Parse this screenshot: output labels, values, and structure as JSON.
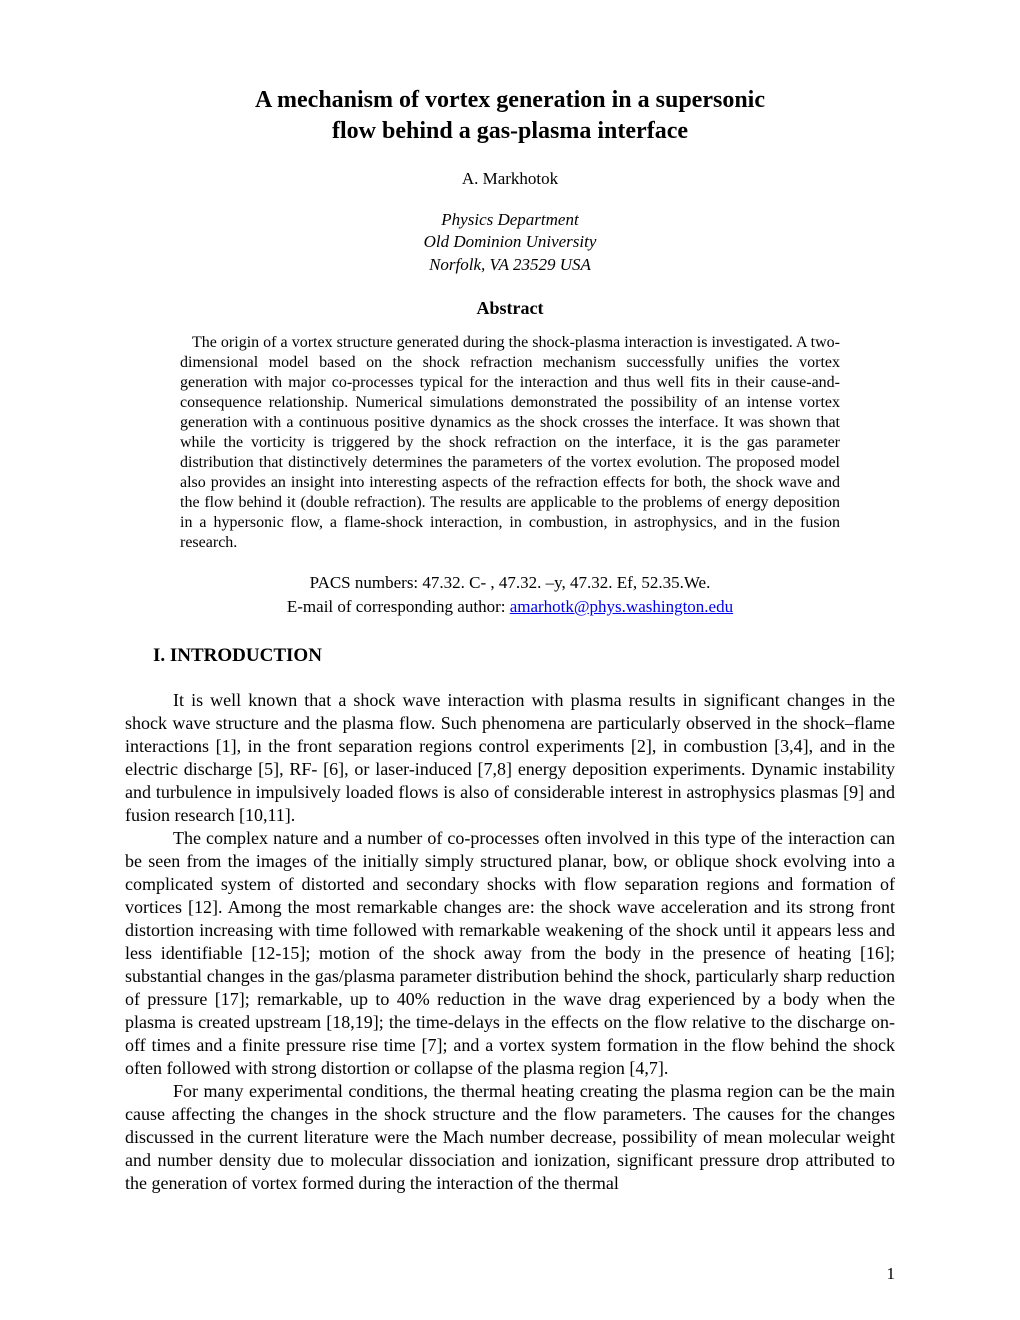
{
  "title_line1": "A mechanism of vortex generation in a supersonic",
  "title_line2": "flow behind a gas-plasma interface",
  "author_prefix": "A.   ",
  "author_name": "Markhotok",
  "affiliation_line1": "Physics Department",
  "affiliation_line2": "Old Dominion University",
  "affiliation_line3": "Norfolk, VA 23529 USA",
  "abstract_heading": "Abstract",
  "abstract_text": "The origin of a vortex structure generated during the shock-plasma interaction is investigated. A two-dimensional model based on the shock refraction mechanism successfully unifies the vortex generation with major co-processes typical for the interaction and thus well fits in their cause-and-consequence relationship. Numerical simulations demonstrated the possibility of an intense vortex generation with a continuous positive dynamics as the shock crosses the interface. It was shown that while the vorticity is triggered by the shock refraction on the interface, it is the gas parameter distribution that distinctively determines the parameters of the vortex evolution. The proposed model also provides an insight into interesting aspects of the refraction effects for both, the shock wave and the flow behind it (double refraction). The results are applicable to the problems of energy deposition in a hypersonic flow, a flame-shock interaction, in combustion, in astrophysics, and in the fusion research.",
  "pacs_line": "PACS numbers: 47.32. C- , 47.32. –y, 47.32. Ef,  52.35.We.",
  "email_label": "E-mail of corresponding author: ",
  "email_address": "amarhotk@phys.washington.edu",
  "section_heading": "I. INTRODUCTION",
  "paragraph1": "It is well known that a shock wave interaction with plasma results in significant changes in the shock wave structure and the plasma flow. Such phenomena are particularly observed in the shock–flame interactions [1], in the front separation regions control experiments [2], in combustion [3,4], and in the electric discharge [5], RF- [6], or laser-induced [7,8] energy deposition experiments. Dynamic instability and turbulence in impulsively loaded flows is also of considerable interest in astrophysics plasmas [9] and fusion research [10,11].",
  "paragraph2": "The complex nature and a number of co-processes often involved in this type of the interaction can be seen from the images of the initially simply structured planar, bow, or oblique shock evolving into a complicated system of distorted and secondary shocks with flow separation regions and formation of vortices [12]. Among the most remarkable changes are: the shock wave acceleration and its strong front distortion  increasing with time followed with remarkable weakening of the shock until it appears less and less identifiable [12-15]; motion of the shock away from the body in the presence of heating [16]; substantial changes in the gas/plasma parameter distribution behind the shock, particularly sharp reduction of pressure [17]; remarkable, up to 40% reduction in the wave drag experienced by a body when the plasma is created upstream [18,19]; the time-delays in the effects on the flow relative to the discharge on-off times and a finite pressure rise time [7]; and a vortex system formation in the flow behind the shock often followed with strong distortion or collapse of the plasma region [4,7].",
  "paragraph3": "For many experimental conditions, the thermal heating creating the plasma region can be the main cause affecting the changes in the shock structure and the flow parameters. The causes for the changes discussed in the current literature were the Mach number decrease, possibility of mean molecular weight and number density due to molecular dissociation and ionization, significant pressure drop attributed to the generation of vortex formed during the interaction of the thermal",
  "page_number": "1"
}
